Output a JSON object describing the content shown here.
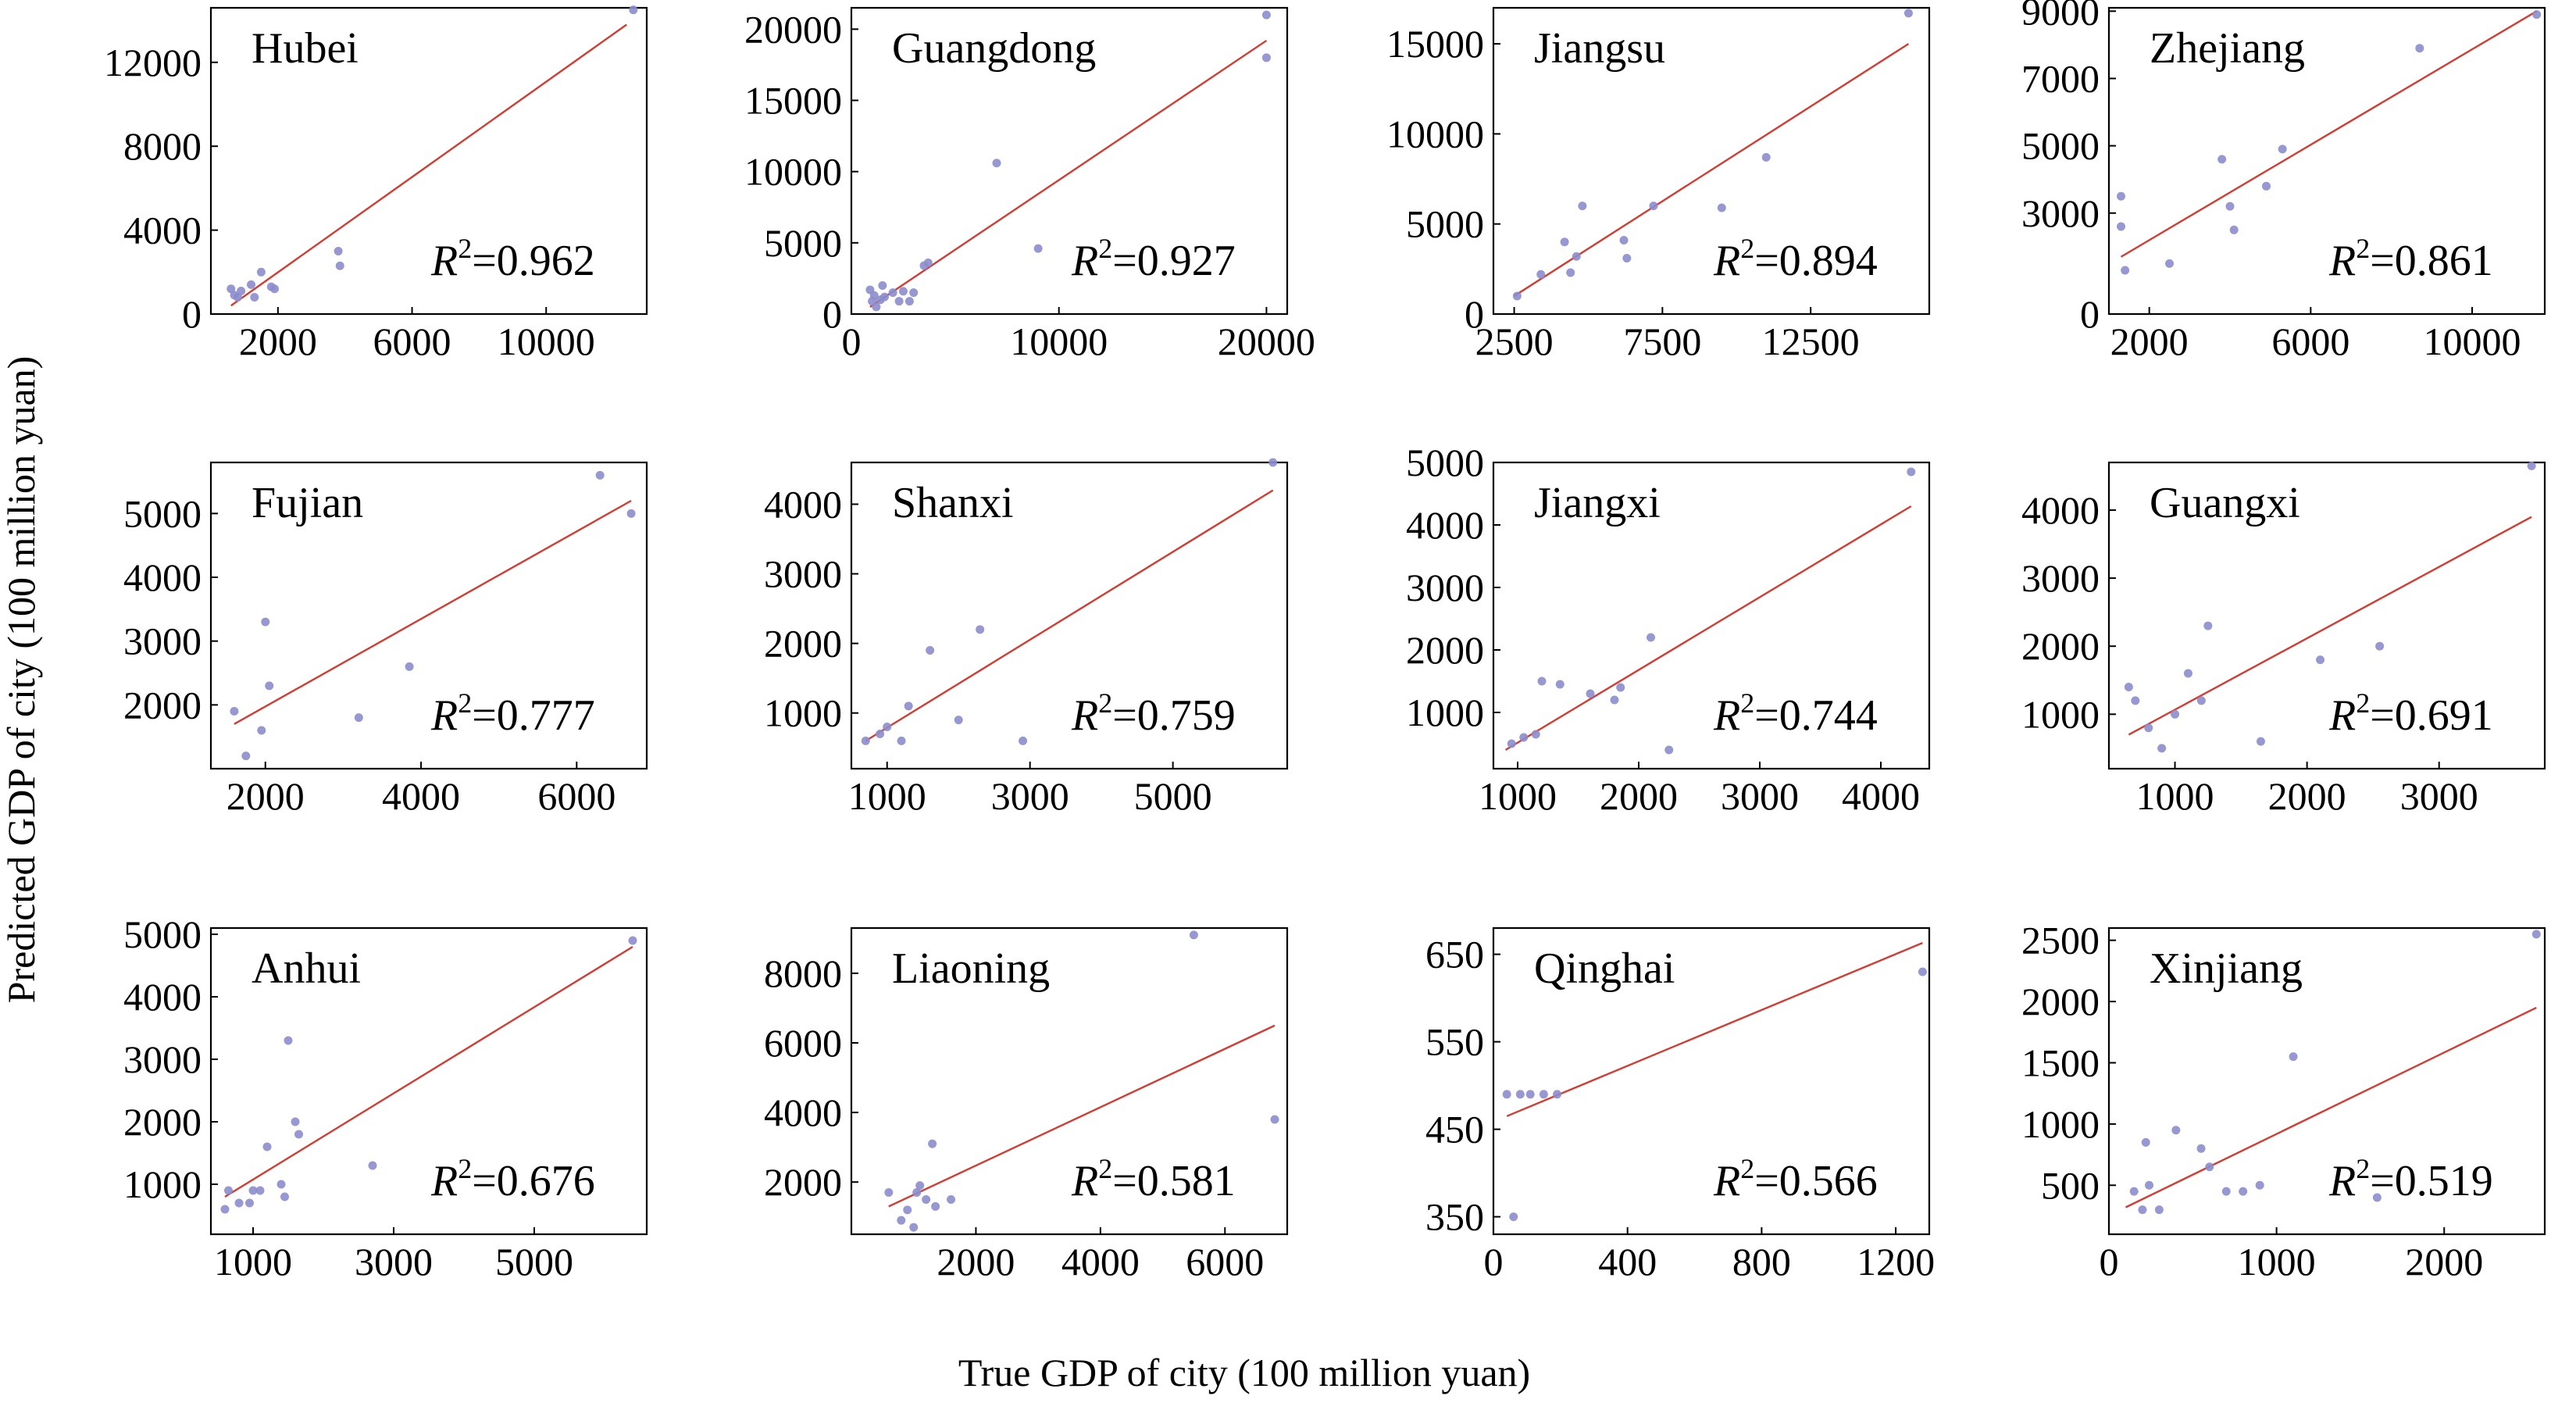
{
  "figure": {
    "xlabel": "True GDP of city (100 million yuan)",
    "ylabel": "Predicted GDP of city (100 million yuan)",
    "colors": {
      "point": "#8c8ccc",
      "fit_line": "#d23c32",
      "axis": "#000000",
      "background": "#ffffff"
    }
  },
  "chart_data": [
    {
      "type": "scatter",
      "title": "Hubei",
      "r2_prefix": "R",
      "r2_exp": "2",
      "r2_value": "=0.962",
      "xlim": [
        0,
        13000
      ],
      "ylim": [
        0,
        14600
      ],
      "xticks": [
        2000,
        6000,
        10000
      ],
      "yticks": [
        0,
        4000,
        8000,
        12000
      ],
      "fit": {
        "x": [
          600,
          12400
        ],
        "y": [
          400,
          13800
        ]
      },
      "points": [
        [
          600,
          1200
        ],
        [
          700,
          900
        ],
        [
          800,
          800
        ],
        [
          900,
          1100
        ],
        [
          1200,
          1400
        ],
        [
          1300,
          800
        ],
        [
          1500,
          2000
        ],
        [
          1800,
          1300
        ],
        [
          1900,
          1200
        ],
        [
          3800,
          3000
        ],
        [
          3850,
          2300
        ],
        [
          12600,
          14500
        ]
      ]
    },
    {
      "type": "scatter",
      "title": "Guangdong",
      "r2_prefix": "R",
      "r2_exp": "2",
      "r2_value": "=0.927",
      "xlim": [
        0,
        21000
      ],
      "ylim": [
        0,
        21500
      ],
      "xticks": [
        0,
        10000,
        20000
      ],
      "yticks": [
        0,
        5000,
        10000,
        15000,
        20000
      ],
      "fit": {
        "x": [
          900,
          20000
        ],
        "y": [
          500,
          19200
        ]
      },
      "points": [
        [
          900,
          1700
        ],
        [
          1000,
          900
        ],
        [
          1100,
          1300
        ],
        [
          1200,
          500
        ],
        [
          1400,
          1000
        ],
        [
          1500,
          2000
        ],
        [
          1600,
          1200
        ],
        [
          2000,
          1500
        ],
        [
          2300,
          900
        ],
        [
          2500,
          1600
        ],
        [
          2800,
          900
        ],
        [
          3000,
          1500
        ],
        [
          3500,
          3400
        ],
        [
          3700,
          3600
        ],
        [
          7000,
          10600
        ],
        [
          9000,
          4600
        ],
        [
          20000,
          18000
        ],
        [
          20000,
          21000
        ]
      ]
    },
    {
      "type": "scatter",
      "title": "Jiangsu",
      "r2_prefix": "R",
      "r2_exp": "2",
      "r2_value": "=0.894",
      "xlim": [
        1800,
        16500
      ],
      "ylim": [
        0,
        17000
      ],
      "xticks": [
        2500,
        7500,
        12500
      ],
      "yticks": [
        0,
        5000,
        10000,
        15000
      ],
      "fit": {
        "x": [
          2500,
          15800
        ],
        "y": [
          1000,
          15000
        ]
      },
      "points": [
        [
          2600,
          1000
        ],
        [
          3400,
          2200
        ],
        [
          4200,
          4000
        ],
        [
          4400,
          2300
        ],
        [
          4600,
          3200
        ],
        [
          4800,
          6000
        ],
        [
          6200,
          4100
        ],
        [
          6300,
          3100
        ],
        [
          7200,
          6000
        ],
        [
          9500,
          5900
        ],
        [
          11000,
          8700
        ],
        [
          15800,
          16700
        ]
      ]
    },
    {
      "type": "scatter",
      "title": "Zhejiang",
      "r2_prefix": "R",
      "r2_exp": "2",
      "r2_value": "=0.861",
      "xlim": [
        1000,
        11800
      ],
      "ylim": [
        0,
        9100
      ],
      "xticks": [
        2000,
        6000,
        10000
      ],
      "yticks": [
        0,
        3000,
        5000,
        7000,
        9000
      ],
      "fit": {
        "x": [
          1300,
          11600
        ],
        "y": [
          1700,
          9000
        ]
      },
      "points": [
        [
          1300,
          2600
        ],
        [
          1300,
          3500
        ],
        [
          1400,
          1300
        ],
        [
          2500,
          1500
        ],
        [
          3800,
          4600
        ],
        [
          4000,
          3200
        ],
        [
          4100,
          2500
        ],
        [
          4900,
          3800
        ],
        [
          5300,
          4900
        ],
        [
          8700,
          7900
        ],
        [
          11600,
          8900
        ]
      ]
    },
    {
      "type": "scatter",
      "title": "Fujian",
      "r2_prefix": "R",
      "r2_exp": "2",
      "r2_value": "=0.777",
      "xlim": [
        1300,
        6900
      ],
      "ylim": [
        1000,
        5800
      ],
      "xticks": [
        2000,
        4000,
        6000
      ],
      "yticks": [
        2000,
        3000,
        4000,
        5000
      ],
      "fit": {
        "x": [
          1600,
          6700
        ],
        "y": [
          1700,
          5200
        ]
      },
      "points": [
        [
          1600,
          1900
        ],
        [
          1750,
          1200
        ],
        [
          1950,
          1600
        ],
        [
          2000,
          3300
        ],
        [
          2050,
          2300
        ],
        [
          3200,
          1800
        ],
        [
          3850,
          2600
        ],
        [
          6300,
          5600
        ],
        [
          6700,
          5000
        ]
      ]
    },
    {
      "type": "scatter",
      "title": "Shanxi",
      "r2_prefix": "R",
      "r2_exp": "2",
      "r2_value": "=0.759",
      "xlim": [
        500,
        6600
      ],
      "ylim": [
        200,
        4600
      ],
      "xticks": [
        1000,
        3000,
        5000
      ],
      "yticks": [
        1000,
        2000,
        3000,
        4000
      ],
      "fit": {
        "x": [
          700,
          6400
        ],
        "y": [
          600,
          4200
        ]
      },
      "points": [
        [
          700,
          600
        ],
        [
          900,
          700
        ],
        [
          1000,
          800
        ],
        [
          1200,
          600
        ],
        [
          1300,
          1100
        ],
        [
          1600,
          1900
        ],
        [
          2000,
          900
        ],
        [
          2300,
          2200
        ],
        [
          2900,
          600
        ],
        [
          6400,
          4600
        ]
      ]
    },
    {
      "type": "scatter",
      "title": "Jiangxi",
      "r2_prefix": "R",
      "r2_exp": "2",
      "r2_value": "=0.744",
      "xlim": [
        800,
        4400
      ],
      "ylim": [
        100,
        5000
      ],
      "xticks": [
        1000,
        2000,
        3000,
        4000
      ],
      "yticks": [
        1000,
        2000,
        3000,
        4000,
        5000
      ],
      "fit": {
        "x": [
          900,
          4250
        ],
        "y": [
          400,
          4300
        ]
      },
      "points": [
        [
          950,
          500
        ],
        [
          1050,
          600
        ],
        [
          1150,
          650
        ],
        [
          1200,
          1500
        ],
        [
          1350,
          1450
        ],
        [
          1600,
          1300
        ],
        [
          1800,
          1200
        ],
        [
          1850,
          1400
        ],
        [
          2100,
          2200
        ],
        [
          2250,
          400
        ],
        [
          4250,
          4850
        ]
      ]
    },
    {
      "type": "scatter",
      "title": "Guangxi",
      "r2_prefix": "R",
      "r2_exp": "2",
      "r2_value": "=0.691",
      "xlim": [
        500,
        3800
      ],
      "ylim": [
        200,
        4700
      ],
      "xticks": [
        1000,
        2000,
        3000
      ],
      "yticks": [
        1000,
        2000,
        3000,
        4000
      ],
      "fit": {
        "x": [
          650,
          3700
        ],
        "y": [
          700,
          3900
        ]
      },
      "points": [
        [
          650,
          1400
        ],
        [
          700,
          1200
        ],
        [
          800,
          800
        ],
        [
          900,
          500
        ],
        [
          1000,
          1000
        ],
        [
          1100,
          1600
        ],
        [
          1200,
          1200
        ],
        [
          1250,
          2300
        ],
        [
          1650,
          600
        ],
        [
          2100,
          1800
        ],
        [
          2550,
          2000
        ],
        [
          3700,
          4650
        ]
      ]
    },
    {
      "type": "scatter",
      "title": "Anhui",
      "r2_prefix": "R",
      "r2_exp": "2",
      "r2_value": "=0.676",
      "xlim": [
        400,
        6600
      ],
      "ylim": [
        200,
        5100
      ],
      "xticks": [
        1000,
        3000,
        5000
      ],
      "yticks": [
        1000,
        2000,
        3000,
        4000,
        5000
      ],
      "fit": {
        "x": [
          600,
          6400
        ],
        "y": [
          800,
          4800
        ]
      },
      "points": [
        [
          600,
          600
        ],
        [
          650,
          900
        ],
        [
          800,
          700
        ],
        [
          950,
          700
        ],
        [
          1000,
          900
        ],
        [
          1100,
          900
        ],
        [
          1200,
          1600
        ],
        [
          1400,
          1000
        ],
        [
          1450,
          800
        ],
        [
          1500,
          3300
        ],
        [
          1600,
          2000
        ],
        [
          1650,
          1800
        ],
        [
          2700,
          1300
        ],
        [
          6400,
          4900
        ]
      ]
    },
    {
      "type": "scatter",
      "title": "Liaoning",
      "r2_prefix": "R",
      "r2_exp": "2",
      "r2_value": "=0.581",
      "xlim": [
        0,
        7000
      ],
      "ylim": [
        500,
        9300
      ],
      "xticks": [
        2000,
        4000,
        6000
      ],
      "yticks": [
        2000,
        4000,
        6000,
        8000
      ],
      "fit": {
        "x": [
          600,
          6800
        ],
        "y": [
          1300,
          6500
        ]
      },
      "points": [
        [
          600,
          1700
        ],
        [
          800,
          900
        ],
        [
          900,
          1200
        ],
        [
          1000,
          700
        ],
        [
          1050,
          1700
        ],
        [
          1100,
          1900
        ],
        [
          1200,
          1500
        ],
        [
          1300,
          3100
        ],
        [
          1350,
          1300
        ],
        [
          1600,
          1500
        ],
        [
          5500,
          9100
        ],
        [
          6800,
          3800
        ]
      ]
    },
    {
      "type": "scatter",
      "title": "Qinghai",
      "r2_prefix": "R",
      "r2_exp": "2",
      "r2_value": "=0.566",
      "xlim": [
        0,
        1300
      ],
      "ylim": [
        330,
        680
      ],
      "xticks": [
        0,
        400,
        800,
        1200
      ],
      "yticks": [
        350,
        450,
        550,
        650
      ],
      "fit": {
        "x": [
          40,
          1280
        ],
        "y": [
          465,
          663
        ]
      },
      "points": [
        [
          40,
          490
        ],
        [
          60,
          350
        ],
        [
          80,
          490
        ],
        [
          110,
          490
        ],
        [
          150,
          490
        ],
        [
          190,
          490
        ],
        [
          1280,
          630
        ]
      ]
    },
    {
      "type": "scatter",
      "title": "Xinjiang",
      "r2_prefix": "R",
      "r2_exp": "2",
      "r2_value": "=0.519",
      "xlim": [
        0,
        2600
      ],
      "ylim": [
        100,
        2600
      ],
      "xticks": [
        0,
        1000,
        2000
      ],
      "yticks": [
        500,
        1000,
        1500,
        2000,
        2500
      ],
      "fit": {
        "x": [
          100,
          2550
        ],
        "y": [
          320,
          1950
        ]
      },
      "points": [
        [
          150,
          450
        ],
        [
          200,
          300
        ],
        [
          220,
          850
        ],
        [
          240,
          500
        ],
        [
          300,
          300
        ],
        [
          400,
          950
        ],
        [
          550,
          800
        ],
        [
          600,
          650
        ],
        [
          700,
          450
        ],
        [
          800,
          450
        ],
        [
          900,
          500
        ],
        [
          1100,
          1550
        ],
        [
          1600,
          400
        ],
        [
          2550,
          2550
        ]
      ]
    }
  ]
}
